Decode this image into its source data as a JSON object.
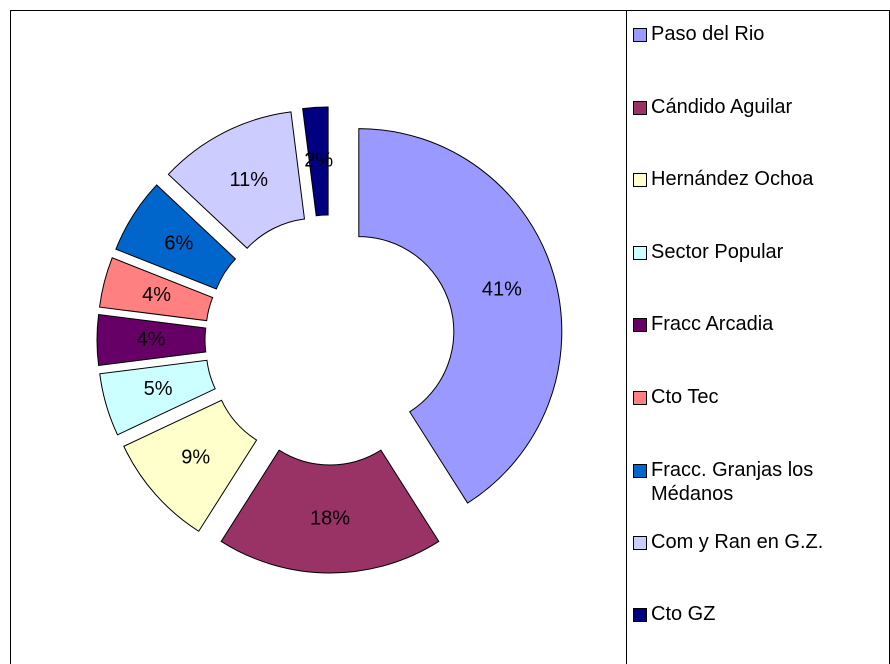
{
  "chart_data": {
    "type": "donut",
    "categories": [
      "Paso del Rio",
      "Cándido Aguilar",
      "Hernández Ochoa",
      "Sector Popular",
      "Fracc Arcadia",
      "Cto Tec",
      "Fracc. Granjas los Médanos",
      "Com y Ran en G.Z.",
      "Cto GZ"
    ],
    "values": [
      41,
      18,
      9,
      5,
      4,
      4,
      6,
      11,
      2
    ],
    "value_labels": [
      "41%",
      "18%",
      "9%",
      "5%",
      "4%",
      "4%",
      "6%",
      "11%",
      "2%"
    ],
    "colors": [
      "#9999ff",
      "#993366",
      "#ffffcc",
      "#ccffff",
      "#660066",
      "#ff8080",
      "#0066cc",
      "#ccccff",
      "#000080"
    ],
    "legend": "right"
  }
}
